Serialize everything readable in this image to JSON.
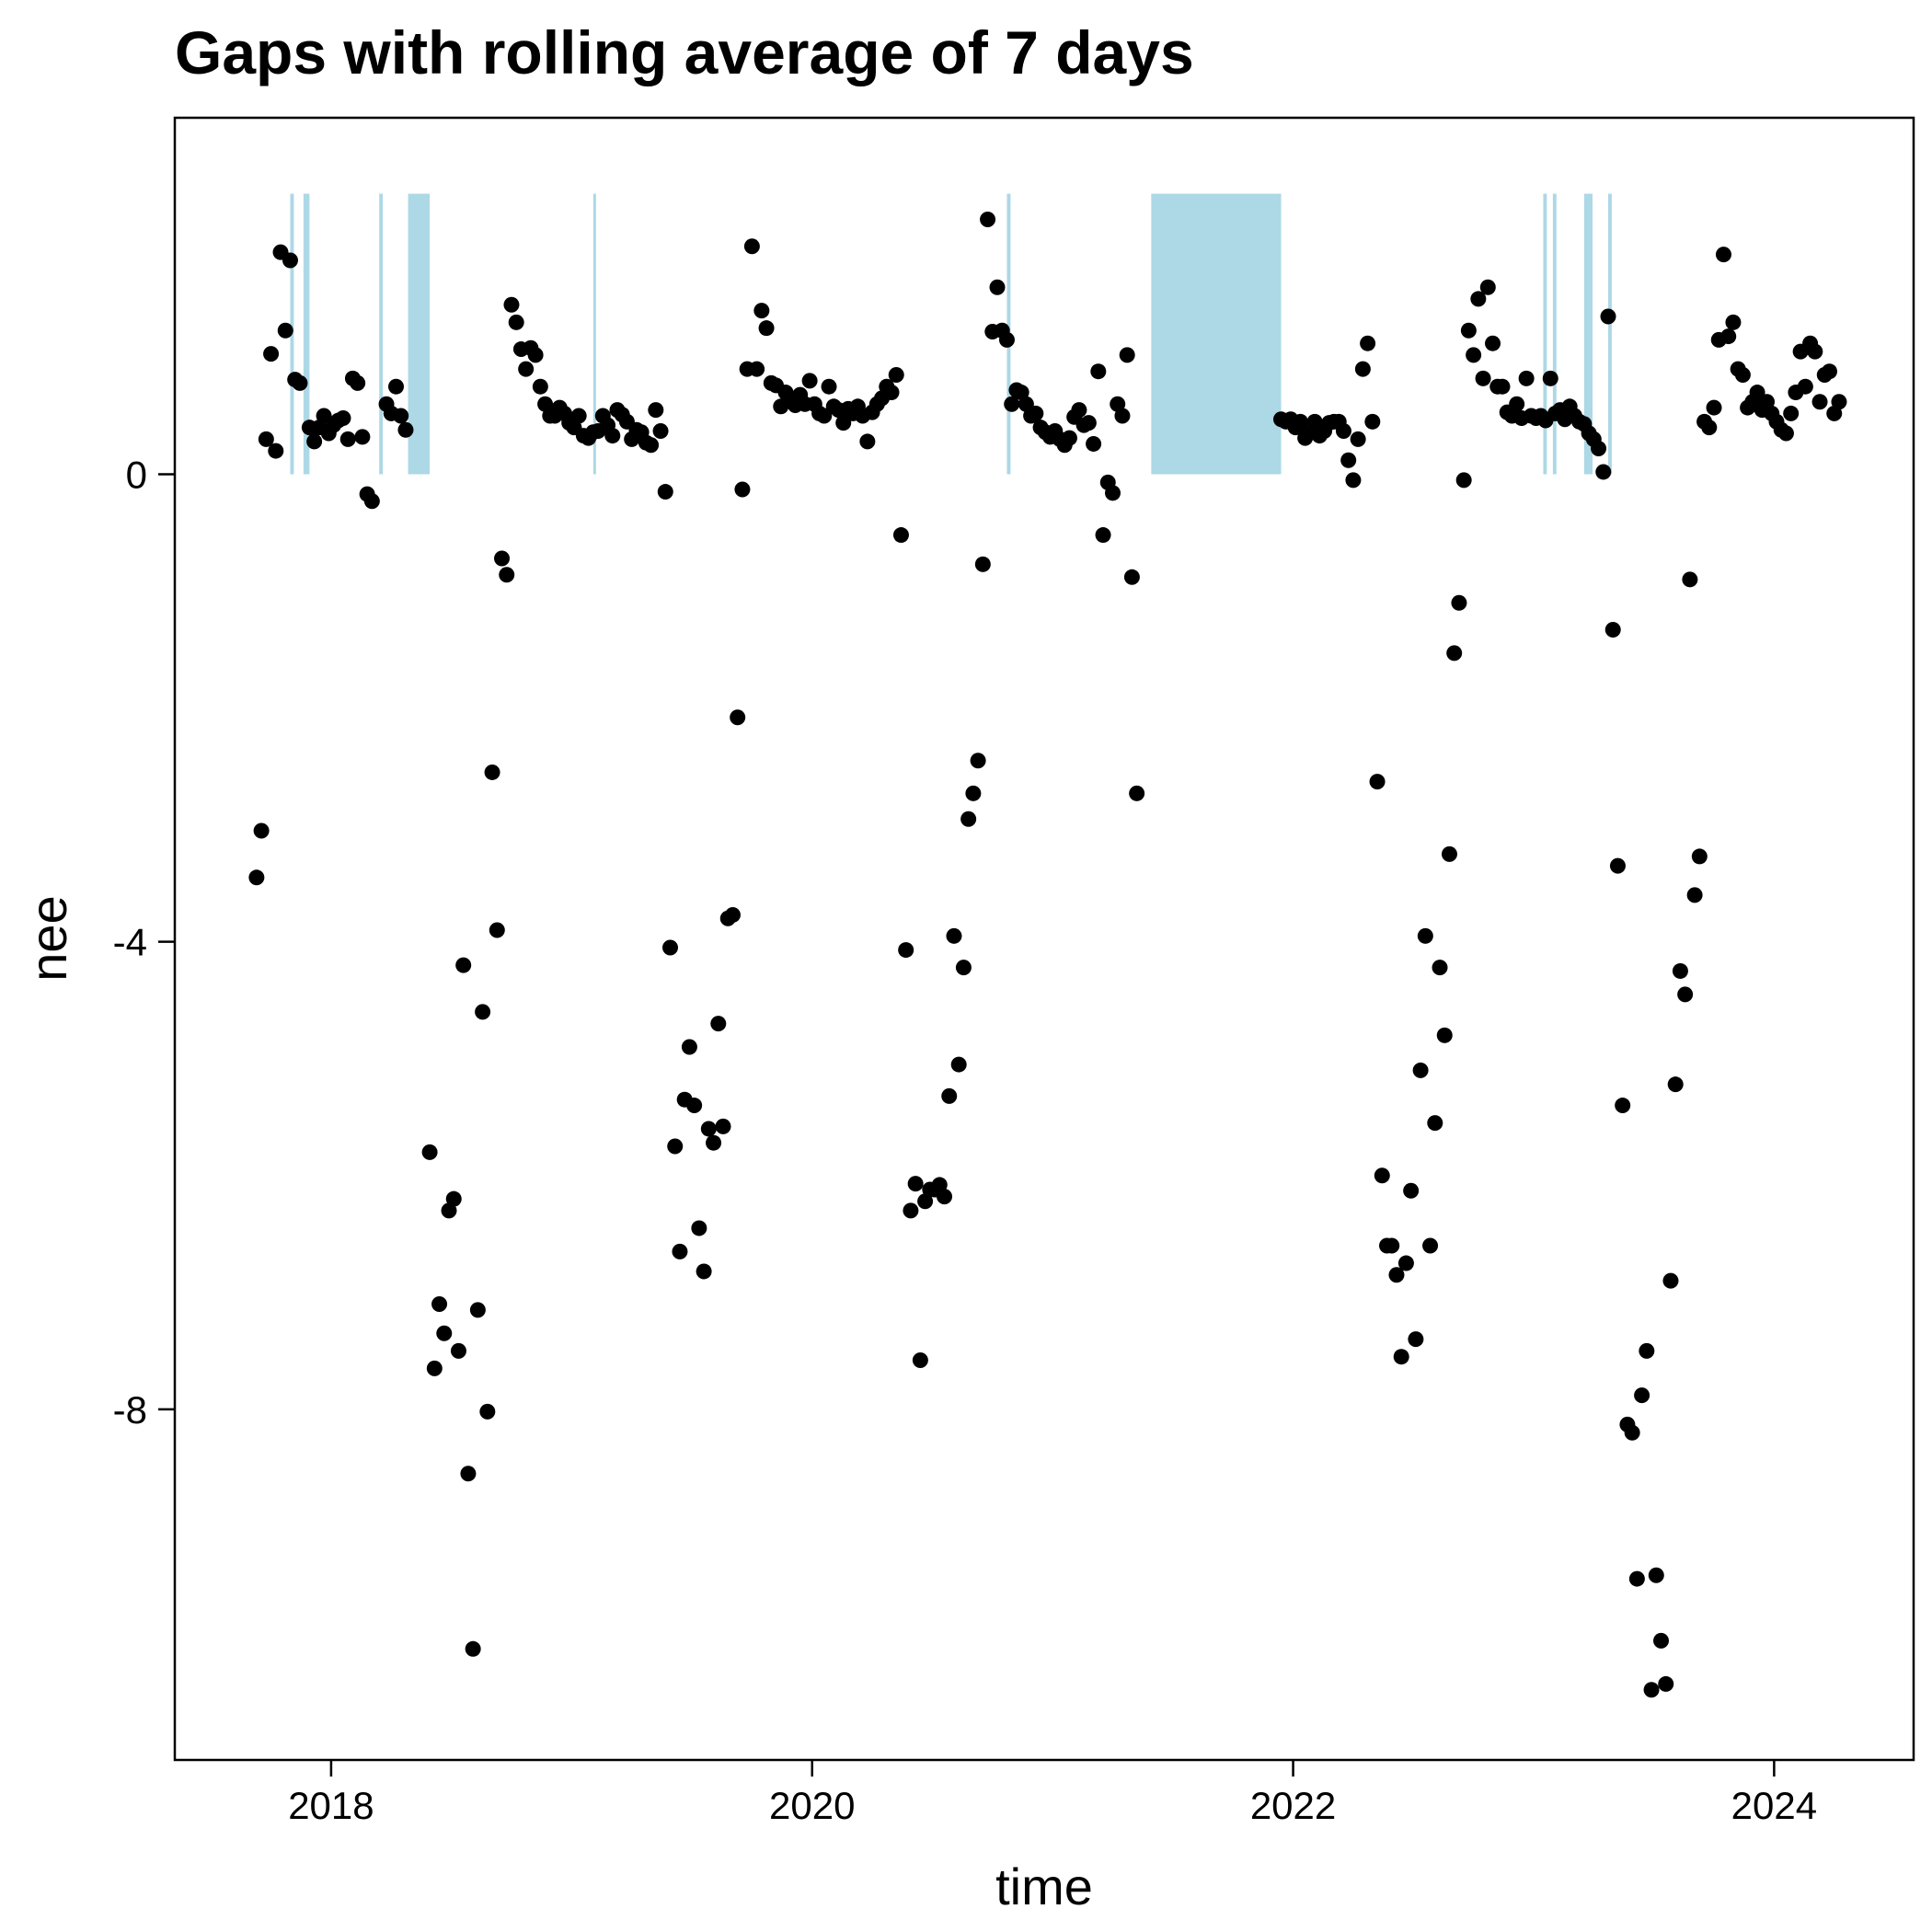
{
  "chart_data": {
    "type": "scatter",
    "title": "Gaps with rolling average of 7 days",
    "xlabel": "time",
    "ylabel": "nee",
    "xlim": [
      2017.35,
      2024.58
    ],
    "ylim": [
      -11.0,
      3.05
    ],
    "x_ticks": [
      2018,
      2020,
      2022,
      2024
    ],
    "x_tick_labels": [
      "2018",
      "2020",
      "2022",
      "2024"
    ],
    "y_ticks": [
      0,
      -4,
      -8
    ],
    "y_tick_labels": [
      "0",
      "-4",
      "-8"
    ],
    "grid": false,
    "legend": "none",
    "colors": {
      "points": "#000000",
      "gaps": "#ADD8E6",
      "frame": "#000000"
    },
    "gap_band": {
      "ymin": 0,
      "ymax": 2.4
    },
    "gaps": [
      [
        2017.83,
        2017.845
      ],
      [
        2017.885,
        2017.91
      ],
      [
        2018.2,
        2018.215
      ],
      [
        2018.32,
        2018.41
      ],
      [
        2019.09,
        2019.1
      ],
      [
        2020.81,
        2020.825
      ],
      [
        2021.41,
        2021.95
      ],
      [
        2023.04,
        2023.055
      ],
      [
        2023.08,
        2023.095
      ],
      [
        2023.21,
        2023.245
      ],
      [
        2023.31,
        2023.325
      ]
    ],
    "points": [
      [
        17.69,
        -3.45
      ],
      [
        17.71,
        -3.05
      ],
      [
        17.73,
        0.3
      ],
      [
        17.75,
        1.03
      ],
      [
        17.77,
        0.2
      ],
      [
        17.79,
        1.9
      ],
      [
        17.81,
        1.23
      ],
      [
        17.83,
        1.83
      ],
      [
        17.85,
        0.81
      ],
      [
        17.87,
        0.78
      ],
      [
        17.91,
        0.4
      ],
      [
        17.93,
        0.28
      ],
      [
        17.95,
        0.4
      ],
      [
        17.97,
        0.5
      ],
      [
        17.99,
        0.35
      ],
      [
        18.01,
        0.42
      ],
      [
        18.03,
        0.46
      ],
      [
        18.05,
        0.48
      ],
      [
        18.07,
        0.3
      ],
      [
        18.09,
        0.82
      ],
      [
        18.11,
        0.78
      ],
      [
        18.13,
        0.32
      ],
      [
        18.15,
        -0.17
      ],
      [
        18.17,
        -0.23
      ],
      [
        18.23,
        0.6
      ],
      [
        18.25,
        0.52
      ],
      [
        18.27,
        0.75
      ],
      [
        18.29,
        0.5
      ],
      [
        18.31,
        0.38
      ],
      [
        18.41,
        -5.8
      ],
      [
        18.43,
        -7.65
      ],
      [
        18.45,
        -7.1
      ],
      [
        18.47,
        -7.35
      ],
      [
        18.49,
        -6.3
      ],
      [
        18.51,
        -6.2
      ],
      [
        18.53,
        -7.5
      ],
      [
        18.55,
        -4.2
      ],
      [
        18.57,
        -8.55
      ],
      [
        18.59,
        -10.05
      ],
      [
        18.61,
        -7.15
      ],
      [
        18.63,
        -4.6
      ],
      [
        18.65,
        -8.02
      ],
      [
        18.67,
        -2.55
      ],
      [
        18.69,
        -3.9
      ],
      [
        18.71,
        -0.72
      ],
      [
        18.73,
        -0.86
      ],
      [
        18.75,
        1.45
      ],
      [
        18.77,
        1.3
      ],
      [
        18.79,
        1.07
      ],
      [
        18.81,
        0.9
      ],
      [
        18.83,
        1.08
      ],
      [
        18.85,
        1.02
      ],
      [
        18.87,
        0.75
      ],
      [
        18.89,
        0.6
      ],
      [
        18.91,
        0.5
      ],
      [
        18.93,
        0.5
      ],
      [
        18.95,
        0.57
      ],
      [
        18.97,
        0.52
      ],
      [
        18.99,
        0.44
      ],
      [
        19.01,
        0.4
      ],
      [
        19.03,
        0.5
      ],
      [
        19.05,
        0.33
      ],
      [
        19.07,
        0.31
      ],
      [
        19.09,
        0.36
      ],
      [
        19.11,
        0.37
      ],
      [
        19.13,
        0.5
      ],
      [
        19.15,
        0.42
      ],
      [
        19.17,
        0.33
      ],
      [
        19.19,
        0.55
      ],
      [
        19.21,
        0.51
      ],
      [
        19.23,
        0.45
      ],
      [
        19.25,
        0.3
      ],
      [
        19.27,
        0.38
      ],
      [
        19.29,
        0.36
      ],
      [
        19.31,
        0.27
      ],
      [
        19.33,
        0.25
      ],
      [
        19.35,
        0.55
      ],
      [
        19.37,
        0.37
      ],
      [
        19.39,
        -0.15
      ],
      [
        19.41,
        -4.05
      ],
      [
        19.43,
        -5.75
      ],
      [
        19.45,
        -6.65
      ],
      [
        19.47,
        -5.35
      ],
      [
        19.49,
        -4.9
      ],
      [
        19.51,
        -5.4
      ],
      [
        19.53,
        -6.45
      ],
      [
        19.55,
        -6.82
      ],
      [
        19.57,
        -5.6
      ],
      [
        19.59,
        -5.72
      ],
      [
        19.61,
        -4.7
      ],
      [
        19.63,
        -5.58
      ],
      [
        19.65,
        -3.8
      ],
      [
        19.67,
        -3.77
      ],
      [
        19.69,
        -2.08
      ],
      [
        19.71,
        -0.13
      ],
      [
        19.73,
        0.9
      ],
      [
        19.75,
        1.95
      ],
      [
        19.77,
        0.9
      ],
      [
        19.79,
        1.4
      ],
      [
        19.81,
        1.25
      ],
      [
        19.83,
        0.78
      ],
      [
        19.85,
        0.76
      ],
      [
        19.87,
        0.58
      ],
      [
        19.89,
        0.7
      ],
      [
        19.91,
        0.64
      ],
      [
        19.93,
        0.59
      ],
      [
        19.95,
        0.68
      ],
      [
        19.97,
        0.6
      ],
      [
        19.99,
        0.8
      ],
      [
        20.01,
        0.6
      ],
      [
        20.03,
        0.52
      ],
      [
        20.05,
        0.5
      ],
      [
        20.07,
        0.75
      ],
      [
        20.09,
        0.58
      ],
      [
        20.11,
        0.55
      ],
      [
        20.13,
        0.44
      ],
      [
        20.15,
        0.56
      ],
      [
        20.17,
        0.52
      ],
      [
        20.19,
        0.58
      ],
      [
        20.21,
        0.5
      ],
      [
        20.23,
        0.28
      ],
      [
        20.25,
        0.53
      ],
      [
        20.27,
        0.6
      ],
      [
        20.29,
        0.65
      ],
      [
        20.31,
        0.75
      ],
      [
        20.33,
        0.7
      ],
      [
        20.35,
        0.85
      ],
      [
        20.37,
        -0.52
      ],
      [
        20.39,
        -4.07
      ],
      [
        20.41,
        -6.3
      ],
      [
        20.43,
        -6.07
      ],
      [
        20.45,
        -7.58
      ],
      [
        20.47,
        -6.22
      ],
      [
        20.49,
        -6.12
      ],
      [
        20.51,
        -6.12
      ],
      [
        20.53,
        -6.08
      ],
      [
        20.55,
        -6.18
      ],
      [
        20.57,
        -5.32
      ],
      [
        20.59,
        -3.95
      ],
      [
        20.61,
        -5.05
      ],
      [
        20.63,
        -4.22
      ],
      [
        20.65,
        -2.95
      ],
      [
        20.67,
        -2.73
      ],
      [
        20.69,
        -2.45
      ],
      [
        20.71,
        -0.77
      ],
      [
        20.73,
        2.18
      ],
      [
        20.75,
        1.22
      ],
      [
        20.77,
        1.6
      ],
      [
        20.79,
        1.23
      ],
      [
        20.81,
        1.15
      ],
      [
        20.83,
        0.6
      ],
      [
        20.85,
        0.72
      ],
      [
        20.87,
        0.7
      ],
      [
        20.89,
        0.6
      ],
      [
        20.91,
        0.5
      ],
      [
        20.93,
        0.52
      ],
      [
        20.95,
        0.4
      ],
      [
        20.97,
        0.36
      ],
      [
        20.99,
        0.32
      ],
      [
        21.01,
        0.37
      ],
      [
        21.03,
        0.3
      ],
      [
        21.05,
        0.25
      ],
      [
        21.07,
        0.31
      ],
      [
        21.09,
        0.49
      ],
      [
        21.11,
        0.55
      ],
      [
        21.13,
        0.42
      ],
      [
        21.15,
        0.44
      ],
      [
        21.17,
        0.26
      ],
      [
        21.19,
        0.88
      ],
      [
        21.21,
        -0.52
      ],
      [
        21.23,
        -0.07
      ],
      [
        21.25,
        -0.16
      ],
      [
        21.27,
        0.6
      ],
      [
        21.29,
        0.5
      ],
      [
        21.31,
        1.02
      ],
      [
        21.33,
        -0.88
      ],
      [
        21.35,
        -2.73
      ],
      [
        21.95,
        0.47
      ],
      [
        21.97,
        0.45
      ],
      [
        21.99,
        0.47
      ],
      [
        22.01,
        0.4
      ],
      [
        22.03,
        0.45
      ],
      [
        22.05,
        0.31
      ],
      [
        22.07,
        0.36
      ],
      [
        22.09,
        0.45
      ],
      [
        22.11,
        0.33
      ],
      [
        22.13,
        0.37
      ],
      [
        22.15,
        0.44
      ],
      [
        22.17,
        0.45
      ],
      [
        22.19,
        0.45
      ],
      [
        22.21,
        0.37
      ],
      [
        22.23,
        0.12
      ],
      [
        22.25,
        -0.05
      ],
      [
        22.27,
        0.3
      ],
      [
        22.29,
        0.9
      ],
      [
        22.31,
        1.12
      ],
      [
        22.33,
        0.45
      ],
      [
        22.35,
        -2.63
      ],
      [
        22.37,
        -6.0
      ],
      [
        22.39,
        -6.6
      ],
      [
        22.41,
        -6.6
      ],
      [
        22.43,
        -6.85
      ],
      [
        22.45,
        -7.55
      ],
      [
        22.47,
        -6.75
      ],
      [
        22.49,
        -6.13
      ],
      [
        22.51,
        -7.4
      ],
      [
        22.53,
        -5.1
      ],
      [
        22.55,
        -3.95
      ],
      [
        22.57,
        -6.6
      ],
      [
        22.59,
        -5.55
      ],
      [
        22.61,
        -4.22
      ],
      [
        22.63,
        -4.8
      ],
      [
        22.65,
        -3.25
      ],
      [
        22.67,
        -1.53
      ],
      [
        22.69,
        -1.1
      ],
      [
        22.71,
        -0.05
      ],
      [
        22.73,
        1.23
      ],
      [
        22.75,
        1.02
      ],
      [
        22.77,
        1.5
      ],
      [
        22.79,
        0.82
      ],
      [
        22.81,
        1.6
      ],
      [
        22.83,
        1.12
      ],
      [
        22.85,
        0.75
      ],
      [
        22.87,
        0.75
      ],
      [
        22.89,
        0.53
      ],
      [
        22.91,
        0.5
      ],
      [
        22.93,
        0.6
      ],
      [
        22.95,
        0.48
      ],
      [
        22.97,
        0.82
      ],
      [
        22.99,
        0.5
      ],
      [
        23.01,
        0.48
      ],
      [
        23.03,
        0.5
      ],
      [
        23.05,
        0.46
      ],
      [
        23.07,
        0.82
      ],
      [
        23.09,
        0.52
      ],
      [
        23.11,
        0.55
      ],
      [
        23.13,
        0.47
      ],
      [
        23.15,
        0.58
      ],
      [
        23.17,
        0.5
      ],
      [
        23.19,
        0.45
      ],
      [
        23.21,
        0.43
      ],
      [
        23.23,
        0.35
      ],
      [
        23.25,
        0.3
      ],
      [
        23.27,
        0.22
      ],
      [
        23.29,
        0.02
      ],
      [
        23.31,
        1.35
      ],
      [
        23.33,
        -1.33
      ],
      [
        23.35,
        -3.35
      ],
      [
        23.37,
        -5.4
      ],
      [
        23.39,
        -8.13
      ],
      [
        23.41,
        -8.2
      ],
      [
        23.43,
        -9.45
      ],
      [
        23.45,
        -7.88
      ],
      [
        23.47,
        -7.5
      ],
      [
        23.49,
        -10.4
      ],
      [
        23.51,
        -9.42
      ],
      [
        23.53,
        -9.98
      ],
      [
        23.55,
        -10.35
      ],
      [
        23.57,
        -6.9
      ],
      [
        23.59,
        -5.22
      ],
      [
        23.61,
        -4.25
      ],
      [
        23.63,
        -4.45
      ],
      [
        23.65,
        -0.9
      ],
      [
        23.67,
        -3.6
      ],
      [
        23.69,
        -3.27
      ],
      [
        23.71,
        0.45
      ],
      [
        23.73,
        0.4
      ],
      [
        23.75,
        0.57
      ],
      [
        23.77,
        1.15
      ],
      [
        23.79,
        1.88
      ],
      [
        23.81,
        1.18
      ],
      [
        23.83,
        1.3
      ],
      [
        23.85,
        0.9
      ],
      [
        23.87,
        0.85
      ],
      [
        23.89,
        0.57
      ],
      [
        23.91,
        0.62
      ],
      [
        23.93,
        0.7
      ],
      [
        23.95,
        0.55
      ],
      [
        23.97,
        0.62
      ],
      [
        23.99,
        0.52
      ],
      [
        24.01,
        0.45
      ],
      [
        24.03,
        0.38
      ],
      [
        24.05,
        0.35
      ],
      [
        24.07,
        0.52
      ],
      [
        24.09,
        0.7
      ],
      [
        24.11,
        1.05
      ],
      [
        24.13,
        0.75
      ],
      [
        24.15,
        1.12
      ],
      [
        24.17,
        1.05
      ],
      [
        24.19,
        0.62
      ],
      [
        24.21,
        0.85
      ],
      [
        24.23,
        0.88
      ],
      [
        24.25,
        0.52
      ],
      [
        24.27,
        0.62
      ]
    ]
  }
}
